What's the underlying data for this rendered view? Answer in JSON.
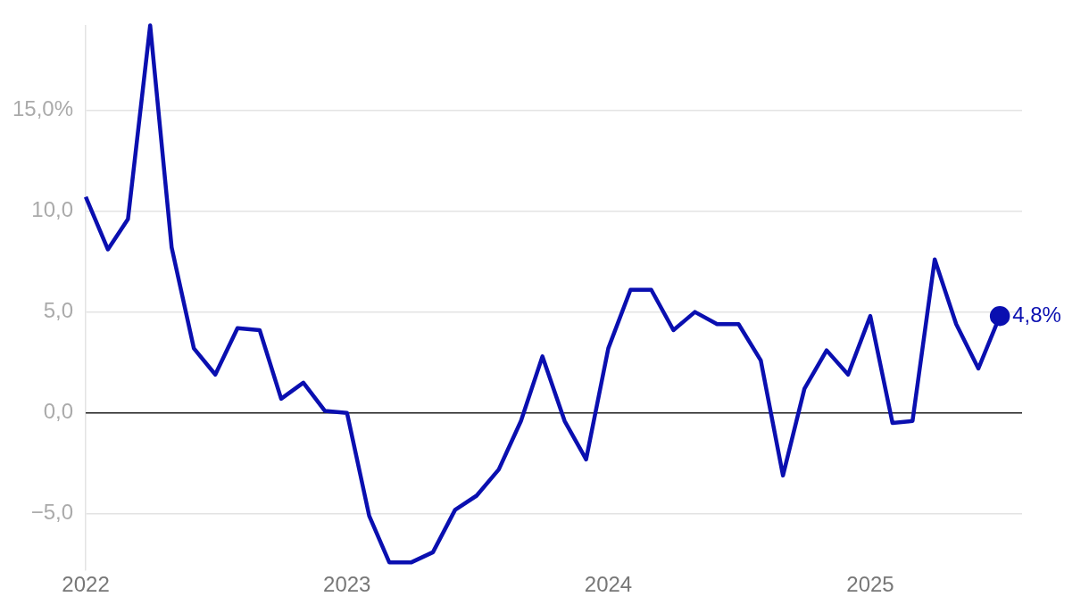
{
  "chart_data": {
    "type": "line",
    "x": [
      "2022-01",
      "2022-02",
      "2022-03",
      "2022-04",
      "2022-05",
      "2022-06",
      "2022-07",
      "2022-08",
      "2022-09",
      "2022-10",
      "2022-11",
      "2022-12",
      "2023-01",
      "2023-02",
      "2023-03",
      "2023-04",
      "2023-05",
      "2023-06",
      "2023-07",
      "2023-08",
      "2023-09",
      "2023-10",
      "2023-11",
      "2023-12",
      "2024-01",
      "2024-02",
      "2024-03",
      "2024-04",
      "2024-05",
      "2024-06",
      "2024-07",
      "2024-08",
      "2024-09",
      "2024-10",
      "2024-11",
      "2024-12",
      "2025-01",
      "2025-02",
      "2025-03",
      "2025-04",
      "2025-05",
      "2025-06",
      "2025-07"
    ],
    "series": [
      {
        "color": "#0a0fb0",
        "values": [
          10.7,
          8.1,
          9.6,
          19.2,
          8.2,
          3.2,
          1.9,
          4.2,
          4.1,
          0.7,
          1.5,
          0.1,
          0.0,
          -5.1,
          -7.4,
          -7.4,
          -6.9,
          -4.8,
          -4.1,
          -2.8,
          -0.4,
          2.8,
          -0.4,
          -2.3,
          3.2,
          6.1,
          6.1,
          4.1,
          5.0,
          4.4,
          4.4,
          2.6,
          -3.1,
          1.2,
          3.1,
          1.9,
          4.8,
          -0.5,
          -0.4,
          7.6,
          4.4,
          2.2,
          4.8
        ],
        "value_labels": [
          null,
          null,
          null,
          null,
          null,
          null,
          null,
          null,
          null,
          null,
          null,
          null,
          null,
          null,
          null,
          null,
          null,
          null,
          null,
          null,
          null,
          null,
          null,
          null,
          null,
          null,
          null,
          null,
          null,
          null,
          null,
          null,
          null,
          null,
          null,
          null,
          null,
          null,
          null,
          null,
          null,
          null,
          "4,8%"
        ]
      }
    ],
    "xlim": [
      "2022-01",
      "2025-08"
    ],
    "xticks": [
      {
        "value": "2022-01",
        "label": "2022"
      },
      {
        "value": "2023-01",
        "label": "2023"
      },
      {
        "value": "2024-01",
        "label": "2024"
      },
      {
        "value": "2025-01",
        "label": "2025"
      }
    ],
    "yticks": [
      {
        "value": -5,
        "label": "−5,0"
      },
      {
        "value": 0,
        "label": "0,0"
      },
      {
        "value": 5,
        "label": "5,0"
      },
      {
        "value": 10,
        "label": "10,0"
      },
      {
        "value": 15,
        "label": "15,0%"
      }
    ],
    "ylim": [
      -7.8,
      19.2
    ],
    "ref_lines": [
      {
        "axis": "y",
        "value": 0,
        "color": "#222222"
      }
    ],
    "grid": "y",
    "marker": "none",
    "line_style": "solid",
    "legend": false
  }
}
